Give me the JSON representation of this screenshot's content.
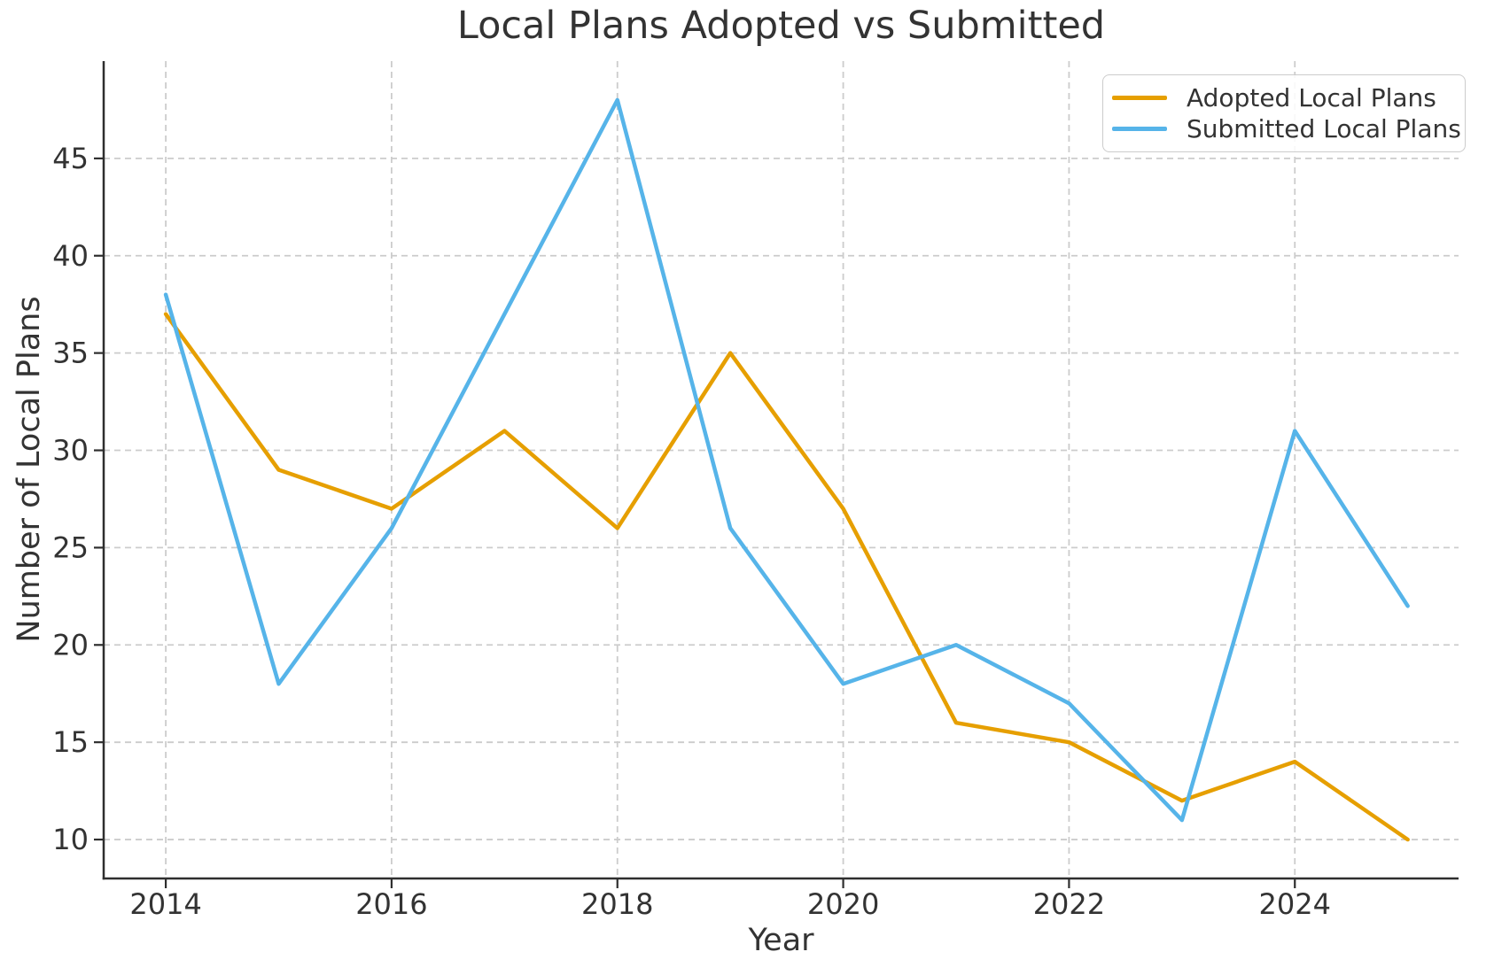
{
  "chart_data": {
    "type": "line",
    "title": "Local Plans Adopted vs Submitted",
    "xlabel": "Year",
    "ylabel": "Number of Local Plans",
    "x": [
      2014,
      2015,
      2016,
      2017,
      2018,
      2019,
      2020,
      2021,
      2022,
      2023,
      2024,
      2025
    ],
    "series": [
      {
        "name": "Adopted Local Plans",
        "color": "#E69F00",
        "values": [
          37,
          29,
          27,
          31,
          26,
          35,
          27,
          16,
          15,
          12,
          14,
          10
        ]
      },
      {
        "name": "Submitted Local Plans",
        "color": "#56B4E9",
        "values": [
          38,
          18,
          26,
          37,
          48,
          26,
          18,
          20,
          17,
          11,
          31,
          22
        ]
      }
    ],
    "xticks": [
      2014,
      2016,
      2018,
      2020,
      2022,
      2024
    ],
    "yticks": [
      10,
      15,
      20,
      25,
      30,
      35,
      40,
      45
    ],
    "xlim": [
      2013.45,
      2025.45
    ],
    "ylim": [
      8,
      50
    ],
    "grid": true,
    "grid_on": "both",
    "legend_position": "upper right",
    "colors": {
      "background": "#ffffff",
      "grid": "#cccccc",
      "axis": "#2e2e2e",
      "text": "#333333",
      "legend_border": "#cccccc"
    }
  }
}
